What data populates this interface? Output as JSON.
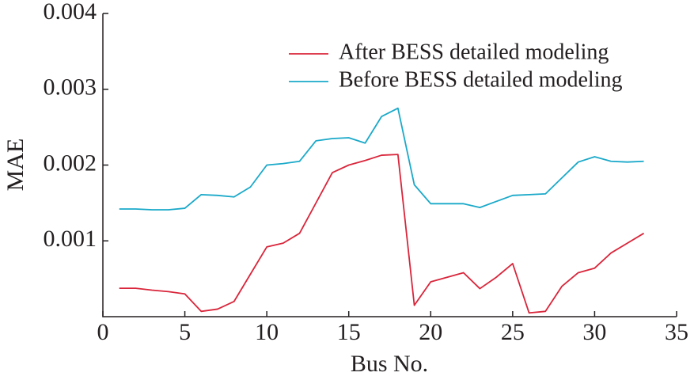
{
  "chart_data": {
    "type": "line",
    "xlabel": "Bus No.",
    "ylabel": "MAE",
    "x": [
      1,
      2,
      3,
      4,
      5,
      6,
      7,
      8,
      9,
      10,
      11,
      12,
      13,
      14,
      15,
      16,
      17,
      18,
      19,
      20,
      21,
      22,
      23,
      24,
      25,
      26,
      27,
      28,
      29,
      30,
      31,
      32,
      33
    ],
    "series": [
      {
        "name": "After BESS detailed modeling",
        "color": "#d9253a",
        "values": [
          0.000375,
          0.000375,
          0.00035,
          0.00033,
          0.0003,
          7e-05,
          0.0001,
          0.0002,
          0.00056,
          0.00092,
          0.00097,
          0.0011,
          0.0015,
          0.0019,
          0.002,
          0.00206,
          0.00213,
          0.00214,
          0.00015,
          0.00046,
          0.00052,
          0.00058,
          0.00037,
          0.00052,
          0.0007,
          5e-05,
          7e-05,
          0.0004,
          0.00058,
          0.00064,
          0.00084,
          0.00097,
          0.0011
        ]
      },
      {
        "name": "Before BESS detailed modeling",
        "color": "#1aa9c9",
        "values": [
          0.00142,
          0.00142,
          0.00141,
          0.00141,
          0.00143,
          0.00161,
          0.0016,
          0.00158,
          0.00171,
          0.002,
          0.00202,
          0.00205,
          0.00232,
          0.00235,
          0.00236,
          0.00229,
          0.00264,
          0.00275,
          0.00174,
          0.00149,
          0.00149,
          0.00149,
          0.00144,
          0.00152,
          0.0016,
          0.00161,
          0.00162,
          0.00183,
          0.00204,
          0.00211,
          0.00205,
          0.00204,
          0.00205
        ]
      }
    ],
    "xlim": [
      0,
      35
    ],
    "xticks": [
      0,
      5,
      10,
      15,
      20,
      25,
      30,
      35
    ],
    "ylim": [
      0,
      0.004
    ],
    "yticks": [
      0.001,
      0.002,
      0.003,
      0.004
    ],
    "legend": "upper-right",
    "grid": false
  }
}
